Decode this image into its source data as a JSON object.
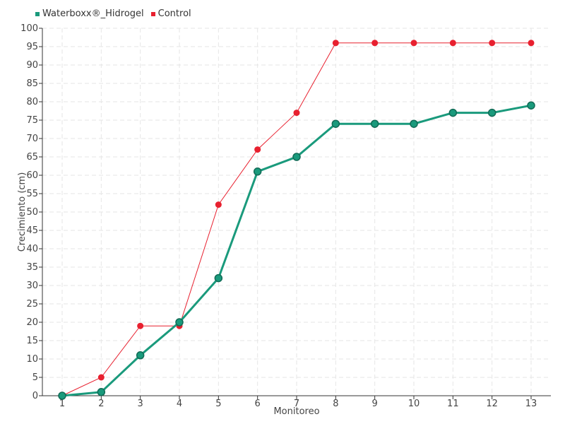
{
  "chart_data": {
    "type": "line",
    "x": [
      "1",
      "2",
      "3",
      "4",
      "5",
      "6",
      "7",
      "8",
      "9",
      "10",
      "11",
      "12",
      "13"
    ],
    "xlabel": "Monitoreo",
    "ylabel": "Crecimiento (cm)",
    "ylim": [
      0,
      100
    ],
    "yticks": [
      "0",
      "5",
      "10",
      "15",
      "20",
      "25",
      "30",
      "35",
      "40",
      "45",
      "50",
      "55",
      "60",
      "65",
      "70",
      "75",
      "80",
      "85",
      "90",
      "95",
      "100"
    ],
    "grid": true,
    "legend_position": "top-left",
    "series": [
      {
        "name": "Waterboxx®_Hidrogel",
        "color": "#1a9a7c",
        "values": [
          0,
          1,
          11,
          20,
          32,
          61,
          65,
          74,
          74,
          74,
          77,
          77,
          79
        ]
      },
      {
        "name": "Control",
        "color": "#e8202f",
        "values": [
          0,
          5,
          19,
          19,
          52,
          67,
          77,
          96,
          96,
          96,
          96,
          96,
          96
        ]
      }
    ]
  }
}
